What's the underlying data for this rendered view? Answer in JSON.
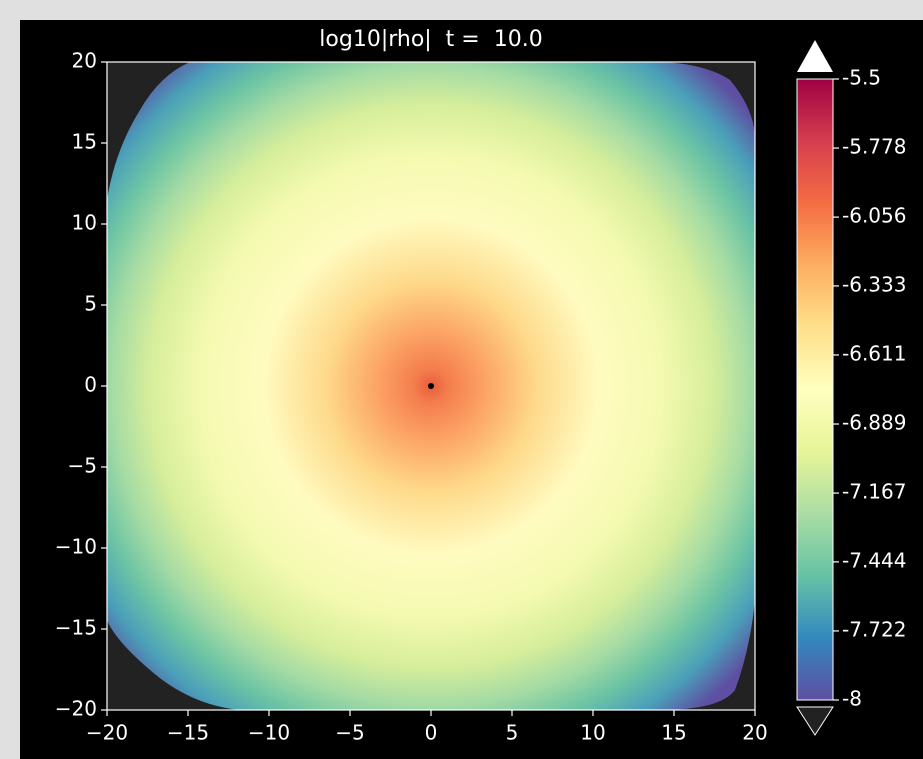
{
  "chart_data": {
    "type": "heatmap",
    "title": "log10|rho|  t =  10.0",
    "xlim": [
      -20,
      20
    ],
    "ylim": [
      -20,
      20
    ],
    "xticks": [
      {
        "value": -20,
        "label": "−20"
      },
      {
        "value": -15,
        "label": "−15"
      },
      {
        "value": -10,
        "label": "−10"
      },
      {
        "value": -5,
        "label": "−5"
      },
      0,
      5,
      10,
      15,
      20
    ],
    "yticks": [
      {
        "value": -20,
        "label": "−20"
      },
      {
        "value": -15,
        "label": "−15"
      },
      {
        "value": -10,
        "label": "−10"
      },
      {
        "value": -5,
        "label": "−5"
      },
      0,
      5,
      10,
      15,
      20
    ],
    "colorbar": {
      "lim": [
        -8,
        -5.5
      ],
      "ticks": [
        -5.5,
        -5.778,
        -6.056,
        -6.333,
        -6.611,
        -6.889,
        -7.167,
        -7.444,
        -7.722,
        -8
      ],
      "colors": [
        "#5e4fa2",
        "#3288bd",
        "#66c2a5",
        "#abdda4",
        "#e6f598",
        "#ffffbf",
        "#fee08b",
        "#fdae61",
        "#f46d43",
        "#d53e4f",
        "#9e0142"
      ],
      "extend": "both"
    }
  }
}
